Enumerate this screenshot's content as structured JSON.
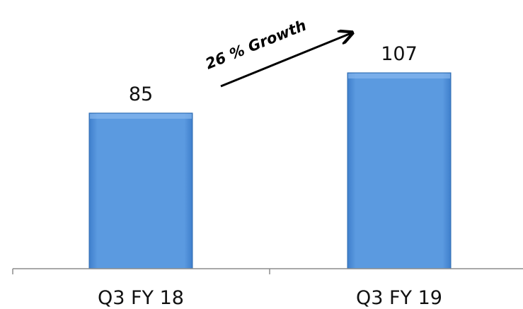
{
  "chart_data": {
    "type": "bar",
    "categories": [
      "Q3 FY 18",
      "Q3 FY 19"
    ],
    "values": [
      85,
      107
    ],
    "title": "",
    "xlabel": "",
    "ylabel": "",
    "ylim": [
      0,
      112
    ],
    "grid": false,
    "data_labels": [
      "85",
      "107"
    ],
    "annotation": "26 % Growth",
    "colors": {
      "bar": "#5b9ae0",
      "bar_edge": "#2f6cb0",
      "axis": "#8c8c8c",
      "text": "#111111"
    }
  }
}
